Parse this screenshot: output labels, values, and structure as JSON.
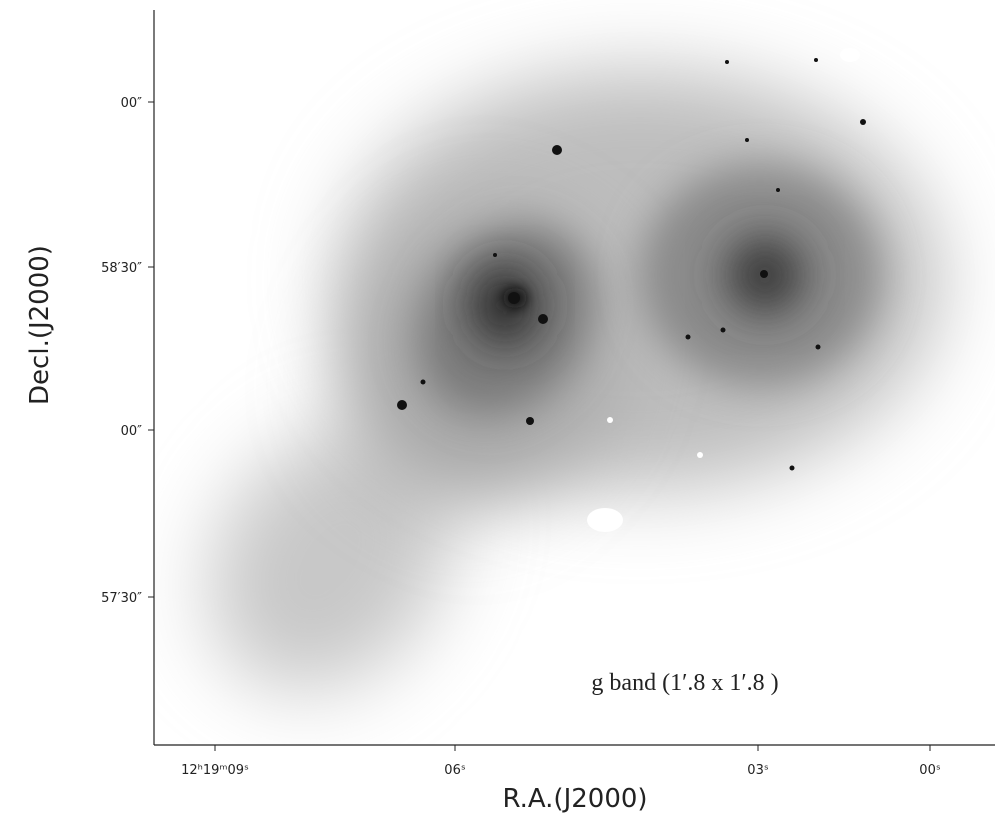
{
  "figure": {
    "x_label": "R.A.(J2000)",
    "y_label": "Decl.(J2000)",
    "x_ticks": [
      "12ʰ19ᵐ09ˢ",
      "06ˢ",
      "03ˢ",
      "00ˢ"
    ],
    "y_ticks": [
      "00″",
      "58′30″",
      "00″",
      "57′30″"
    ],
    "annotation": "g band  (1′.8 x 1′.8 )"
  }
}
